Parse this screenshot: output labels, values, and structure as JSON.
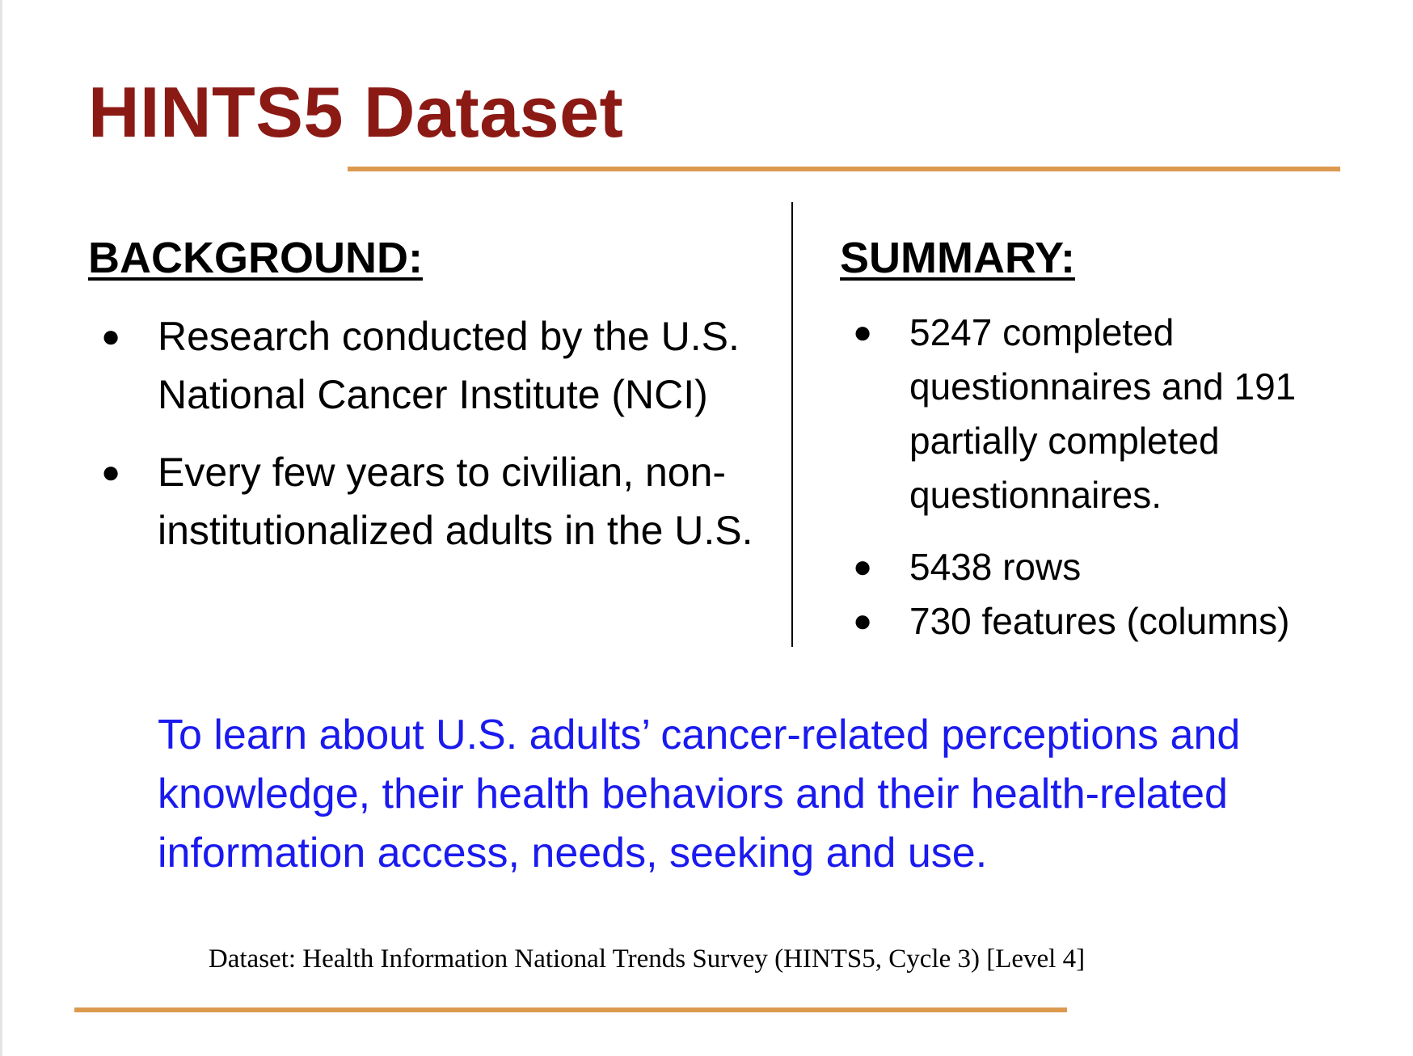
{
  "slide": {
    "title": "HINTS5 Dataset",
    "accent_color": "#dc9a50",
    "title_color": "#8b1a15",
    "purpose_color": "#1a1aef"
  },
  "background": {
    "heading": "BACKGROUND:",
    "items": [
      "Research conducted by the U.S. National Cancer Institute (NCI)",
      "Every few years to civilian, non-institutionalized adults in the U.S."
    ]
  },
  "summary": {
    "heading": "SUMMARY:",
    "items": [
      "5247 completed questionnaires and 191 partially completed questionnaires.",
      "5438 rows",
      "730 features (columns)"
    ]
  },
  "bullet_glyph": "●",
  "purpose": "To learn about U.S. adults’ cancer-related perceptions and knowledge, their health behaviors and their health-related information access, needs, seeking and use.",
  "source": "Dataset: Health Information National Trends Survey (HINTS5, Cycle 3) [Level 4]"
}
